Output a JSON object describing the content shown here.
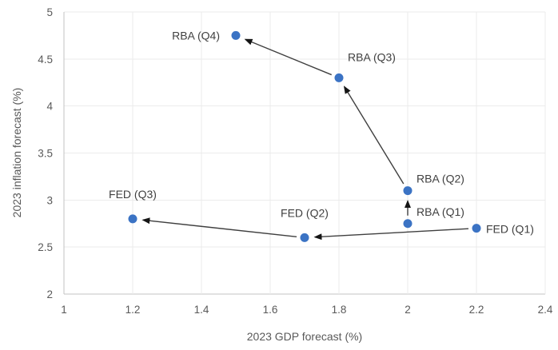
{
  "chart_data": {
    "type": "scatter",
    "title": "",
    "xlabel": "2023 GDP forecast (%)",
    "ylabel": "2023 inflation forecast (%)",
    "xlim": [
      1,
      2.4
    ],
    "ylim": [
      2,
      5
    ],
    "xticks": [
      1,
      1.2,
      1.4,
      1.6,
      1.8,
      2,
      2.2,
      2.4
    ],
    "yticks": [
      2,
      2.5,
      3,
      3.5,
      4,
      4.5,
      5
    ],
    "grid": true,
    "legend": "none",
    "marker": "circle",
    "colors": {
      "point": "#3b73c4",
      "arrow_line": "#3f3f3f",
      "arrow_head": "#151515",
      "grid": "#ebebeb",
      "axis": "#c3c3c3",
      "tick_label": "#595959",
      "axis_title": "#595959",
      "point_label": "#3f3f3f",
      "background": "#ffffff"
    },
    "points": [
      {
        "label": "RBA (Q4)",
        "x": 1.5,
        "y": 4.75,
        "label_pos": "left"
      },
      {
        "label": "RBA (Q3)",
        "x": 1.8,
        "y": 4.3,
        "label_pos": "above-right"
      },
      {
        "label": "RBA (Q2)",
        "x": 2,
        "y": 3.1,
        "label_pos": "right-above"
      },
      {
        "label": "RBA (Q1)",
        "x": 2,
        "y": 2.75,
        "label_pos": "right-above"
      },
      {
        "label": "FED (Q1)",
        "x": 2.2,
        "y": 2.7,
        "label_pos": "right"
      },
      {
        "label": "FED (Q2)",
        "x": 1.7,
        "y": 2.6,
        "label_pos": "above"
      },
      {
        "label": "FED (Q3)",
        "x": 1.2,
        "y": 2.8,
        "label_pos": "above"
      }
    ],
    "arrows": [
      {
        "from": "FED (Q1)",
        "to": "FED (Q2)"
      },
      {
        "from": "FED (Q2)",
        "to": "FED (Q3)"
      },
      {
        "from": "RBA (Q1)",
        "to": "RBA (Q2)"
      },
      {
        "from": "RBA (Q2)",
        "to": "RBA (Q3)"
      },
      {
        "from": "RBA (Q3)",
        "to": "RBA (Q4)"
      }
    ]
  }
}
